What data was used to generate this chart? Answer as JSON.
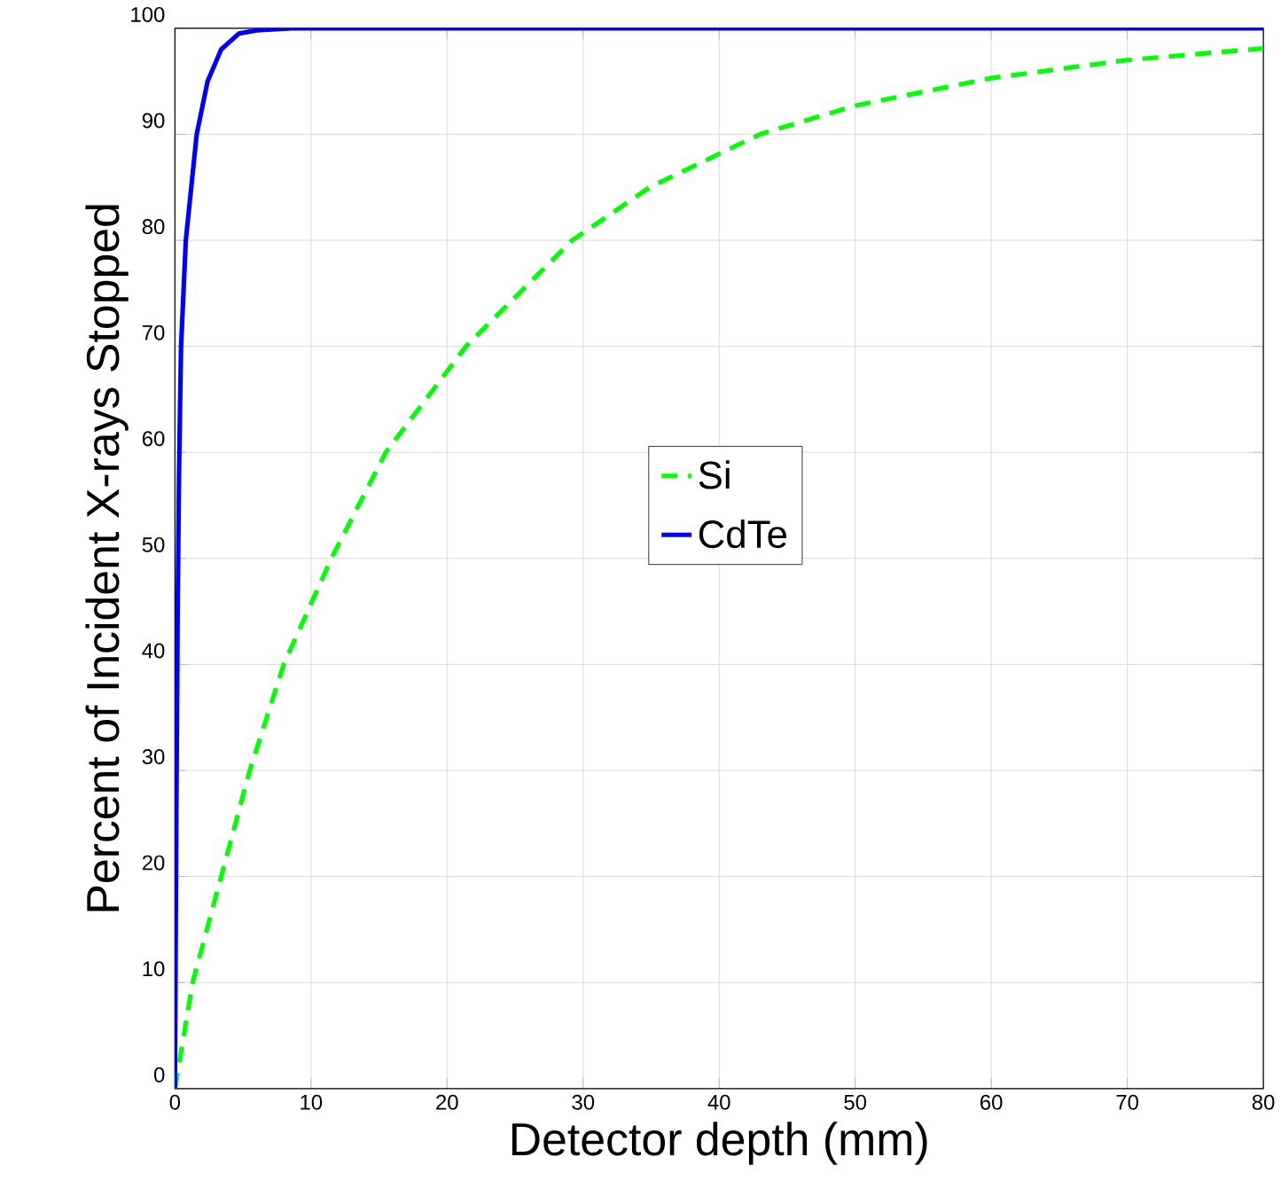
{
  "chart_data": {
    "type": "line",
    "xlabel": "Detector depth (mm)",
    "ylabel": "Percent of Incident X-rays Stopped",
    "xlim": [
      0,
      80
    ],
    "ylim": [
      0,
      100
    ],
    "xticks": [
      0,
      10,
      20,
      30,
      40,
      50,
      60,
      70,
      80
    ],
    "yticks": [
      0,
      10,
      20,
      30,
      40,
      50,
      60,
      70,
      80,
      90,
      100
    ],
    "grid": true,
    "legend": "right",
    "series": [
      {
        "name": "Si",
        "color": "#00ff00",
        "line_style": "dashed",
        "x": [
          0,
          1.3,
          3.4,
          5.5,
          8.0,
          11.5,
          15.5,
          21.4,
          29.2,
          34.9,
          43,
          50,
          60,
          70,
          80
        ],
        "values": [
          0,
          10,
          20,
          30,
          40,
          50,
          60,
          70,
          80,
          85,
          90,
          92.7,
          95.3,
          97.0,
          98.1
        ]
      },
      {
        "name": "CdTe",
        "color": "#0000ff",
        "line_style": "solid",
        "x": [
          0,
          0.1,
          0.2,
          0.3,
          0.45,
          0.8,
          1.6,
          2.4,
          3.4,
          4.7,
          6,
          8.6,
          80
        ],
        "values": [
          0,
          25,
          45,
          58,
          70,
          80,
          90,
          95,
          98,
          99.5,
          99.8,
          100,
          100
        ]
      }
    ]
  }
}
